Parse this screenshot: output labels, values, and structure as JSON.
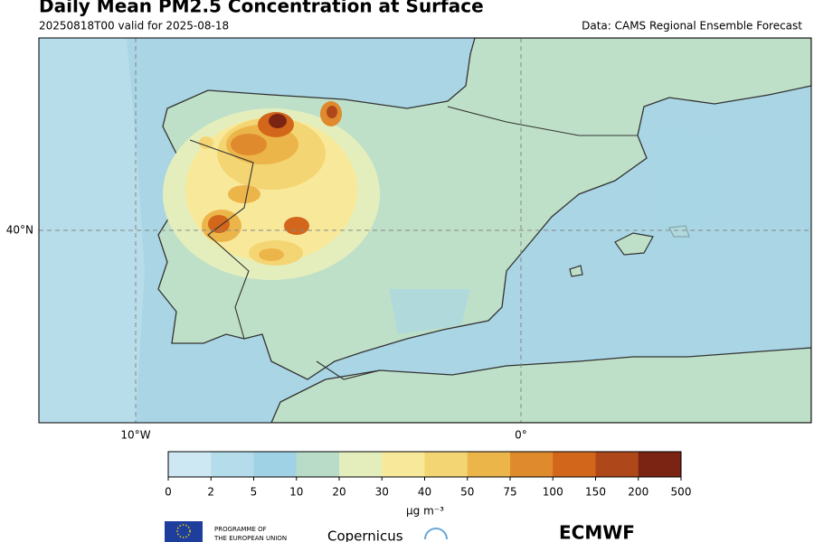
{
  "header": {
    "title": "Daily Mean PM2.5 Concentration at Surface",
    "subtitle": "20250818T00 valid for 2025-08-18",
    "source": "Data: CAMS Regional Ensemble Forecast"
  },
  "map": {
    "lon_labels": [
      "10°W",
      "0°"
    ],
    "lat_labels": [
      "40°N"
    ]
  },
  "colorbar": {
    "bounds": [
      0,
      2,
      5,
      10,
      20,
      30,
      40,
      50,
      75,
      100,
      150,
      200,
      500
    ],
    "colors": [
      "#cde8f3",
      "#b4dcea",
      "#9fd2e4",
      "#b9dcc8",
      "#e4eebd",
      "#f8e99a",
      "#f4d573",
      "#ecb54a",
      "#df8a2d",
      "#d2661a",
      "#ae481b",
      "#7b2414"
    ],
    "label": "μg m⁻³"
  },
  "footer": {
    "eu_line1": "PROGRAMME OF",
    "eu_line2": "THE EUROPEAN UNION",
    "copernicus": "Copernicus",
    "ecmwf": "ECMWF"
  }
}
